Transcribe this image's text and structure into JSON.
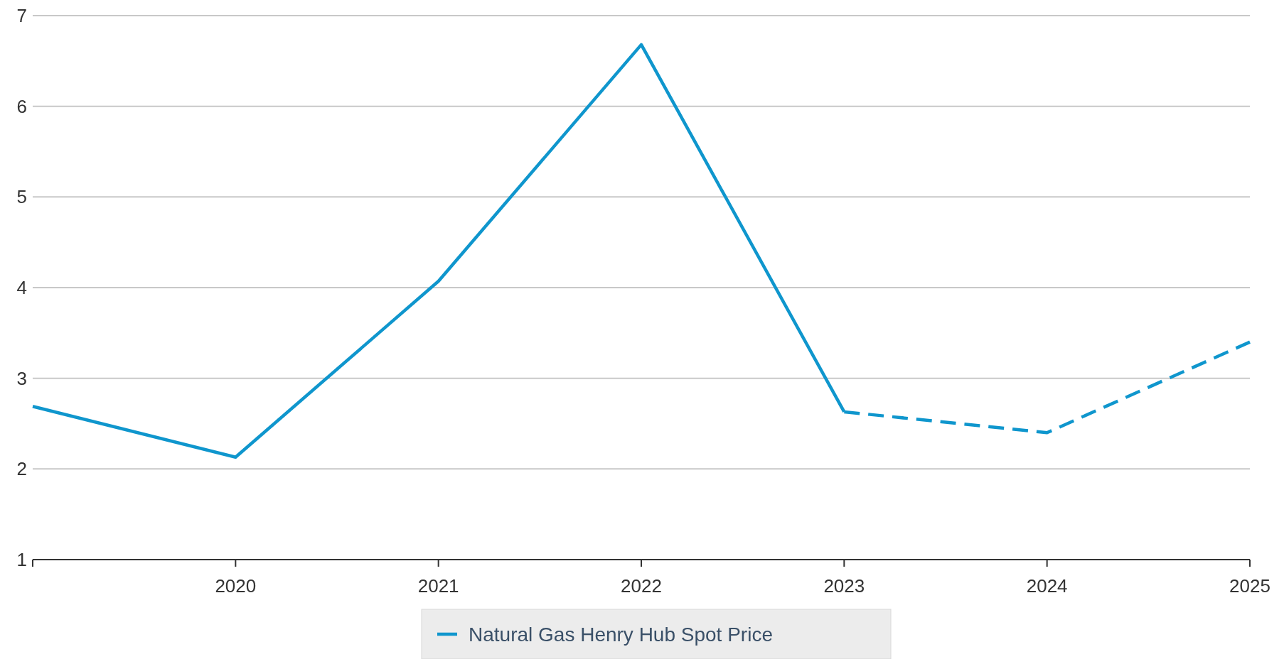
{
  "chart_data": {
    "type": "line",
    "x": [
      2019,
      2020,
      2021,
      2022,
      2023,
      2024,
      2025
    ],
    "series": [
      {
        "name": "Natural Gas Henry Hub Spot Price",
        "color": "#0f96cd",
        "line_style": "solid",
        "values": [
          2.69,
          2.13,
          4.07,
          6.68,
          2.63,
          null,
          null
        ]
      },
      {
        "color": "#0f96cd",
        "line_style": "dashed",
        "values": [
          null,
          null,
          null,
          null,
          2.63,
          2.4,
          3.4
        ]
      }
    ],
    "xlim": [
      2019,
      2025
    ],
    "xticks": [
      {
        "value": 2019,
        "label": null
      },
      2020,
      2021,
      2022,
      2023,
      2024,
      2025
    ],
    "ylim": [
      1,
      7
    ],
    "yticks": [
      1,
      2,
      3,
      4,
      5,
      6,
      7
    ],
    "grid": "y",
    "legend": "bottom"
  }
}
